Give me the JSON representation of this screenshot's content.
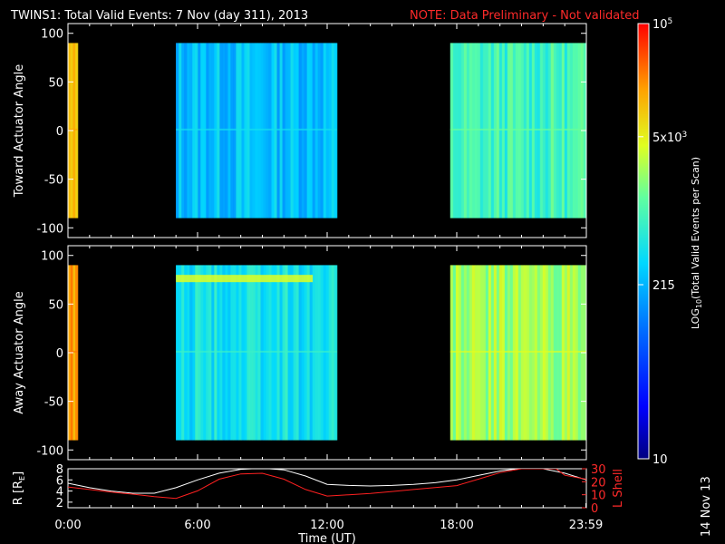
{
  "title": {
    "main": "TWINS1: Total Valid Events:  7 Nov (day 311), 2013",
    "note": "NOTE: Data Preliminary - Not validated",
    "note_color": "#ff2020"
  },
  "stamp": "14 Nov 13",
  "chart_data": [
    {
      "type": "heatmap",
      "panel": "top",
      "ylabel": "Toward Actuator Angle",
      "ylim": [
        -110,
        110
      ],
      "yticks": [
        "100",
        "50",
        "0",
        "-50",
        "-100"
      ],
      "x_unit": "hours UT",
      "xlim": [
        0,
        24
      ],
      "angle_range": [
        -90,
        90
      ],
      "blocks": [
        {
          "start": 0,
          "end": 0.45,
          "level": 0.78
        },
        {
          "start": 5.0,
          "end": 12.45,
          "level": 0.42
        },
        {
          "start": 17.7,
          "end": 23.99,
          "level": 0.55
        }
      ]
    },
    {
      "type": "heatmap",
      "panel": "bottom",
      "ylabel": "Away Actuator Angle",
      "ylim": [
        -110,
        110
      ],
      "yticks": [
        "100",
        "50",
        "0",
        "-50",
        "-100"
      ],
      "x_unit": "hours UT",
      "xlim": [
        0,
        24
      ],
      "angle_range": [
        -90,
        90
      ],
      "blocks": [
        {
          "start": 0,
          "end": 0.45,
          "level": 0.83
        },
        {
          "start": 5.0,
          "end": 12.45,
          "level": 0.48
        },
        {
          "start": 17.7,
          "end": 23.99,
          "level": 0.66
        }
      ]
    },
    {
      "type": "line",
      "panel": "orbit",
      "ylabel": "R [R",
      "ylabel_sub": "E",
      "ylabel_close": "]",
      "ylabel_right": "L Shell",
      "ylim_left": [
        1,
        8
      ],
      "ylim_right": [
        0,
        30
      ],
      "yticks_left": [
        "8",
        "6",
        "4",
        "2"
      ],
      "yticks_right": [
        "30",
        "20",
        "10",
        "0"
      ],
      "xlabel": "Time (UT)",
      "xticks": [
        "0:00",
        "6:00",
        "12:00",
        "18:00",
        "23:59"
      ],
      "xtick_values": [
        0,
        6,
        12,
        18,
        23.98
      ],
      "series": [
        {
          "color": "#ffffff",
          "x": [
            0,
            1,
            2,
            3,
            4,
            5,
            6,
            7,
            8,
            9,
            10,
            11,
            12,
            13,
            14,
            15,
            16,
            17,
            18,
            19,
            20,
            21,
            22,
            23,
            24
          ],
          "values": [
            5.4,
            4.6,
            4.0,
            3.6,
            3.6,
            4.6,
            6.0,
            7.2,
            7.9,
            8.1,
            7.8,
            6.7,
            5.2,
            5.0,
            4.9,
            5.0,
            5.2,
            5.5,
            6.0,
            6.8,
            7.6,
            8.1,
            8.0,
            7.2,
            6.0
          ]
        },
        {
          "color": "#ff2020",
          "x": [
            0,
            1,
            2,
            3,
            4,
            5,
            6,
            7,
            8,
            9,
            10,
            11,
            12,
            13,
            14,
            15,
            16,
            17,
            18,
            19,
            20,
            21,
            21.7,
            22.6,
            23,
            24
          ],
          "values": [
            16.0,
            14.0,
            12.0,
            10.5,
            8.5,
            7.2,
            13.0,
            22.0,
            26.0,
            26.5,
            22.0,
            14.0,
            9.0,
            10.0,
            11.0,
            12.5,
            14.0,
            15.5,
            17.0,
            22.0,
            27.0,
            30.0,
            30.0,
            30.0,
            25.0,
            22.0
          ]
        }
      ]
    }
  ],
  "colorbar": {
    "ylabel_prefix": "LOG",
    "ylabel_sub": "10",
    "ylabel_rest": "(Total Valid  Events per Scan)",
    "labels": [
      {
        "text": "10",
        "sup": "5",
        "level": 1.0
      },
      {
        "text": "5x10",
        "sup": "3",
        "level": 0.74
      },
      {
        "text": "215",
        "level": 0.4
      },
      {
        "text": "10",
        "level": 0.0
      }
    ]
  }
}
